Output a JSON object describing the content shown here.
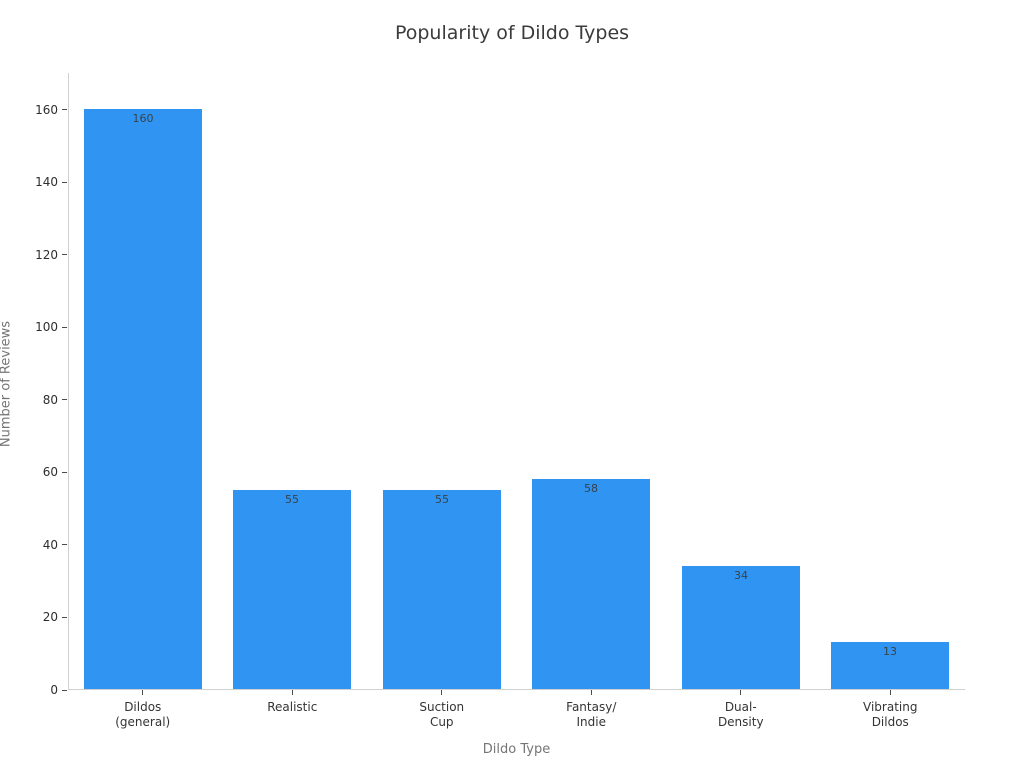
{
  "chart_data": {
    "type": "bar",
    "title": "Popularity of Dildo Types",
    "xlabel": "Dildo Type",
    "ylabel": "Number of Reviews",
    "categories": [
      "Dildos\n(general)",
      "Realistic",
      "Suction\nCup",
      "Fantasy/\nIndie",
      "Dual-\nDensity",
      "Vibrating\nDildos"
    ],
    "values": [
      160,
      55,
      55,
      58,
      34,
      13
    ],
    "bar_labels": [
      "160",
      "55",
      "55",
      "58",
      "34",
      "13"
    ],
    "yticks": [
      0,
      20,
      40,
      60,
      80,
      100,
      120,
      140,
      160
    ],
    "ylim": [
      0,
      170.2
    ],
    "grid": false,
    "legend_position": "none",
    "colors": {
      "bar": "#3095f2",
      "spine": "#d0d0d0",
      "tick": "#4a4a4a",
      "tick_label": "#2e2e2e",
      "axis_title": "#757575",
      "title": "#3b3b3b",
      "value_label": "#37424a",
      "background": "#ffffff"
    }
  }
}
